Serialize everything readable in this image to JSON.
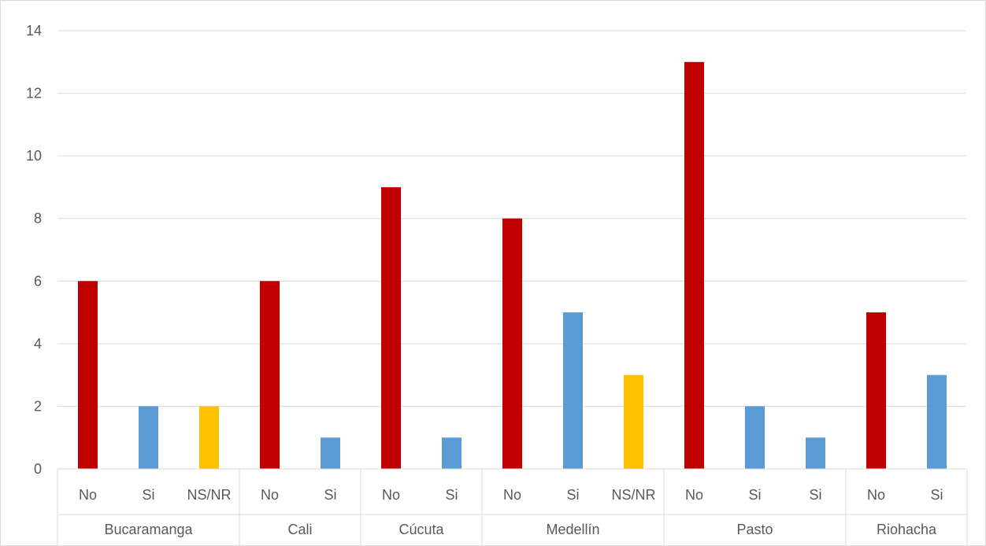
{
  "chart_data": {
    "type": "bar",
    "title": "",
    "xlabel": "",
    "ylabel": "",
    "ylim": [
      0,
      14
    ],
    "yticks": [
      0,
      2,
      4,
      6,
      8,
      10,
      12,
      14
    ],
    "grid": true,
    "legend": "none",
    "colors": {
      "No": "#c00000",
      "Si": "#5b9bd5",
      "NS/NR": "#ffc000"
    },
    "groups": [
      {
        "name": "Bucaramanga",
        "bars": [
          {
            "label": "No",
            "value": 6
          },
          {
            "label": "Si",
            "value": 2
          },
          {
            "label": "NS/NR",
            "value": 2
          }
        ]
      },
      {
        "name": "Cali",
        "bars": [
          {
            "label": "No",
            "value": 6
          },
          {
            "label": "Si",
            "value": 1
          }
        ]
      },
      {
        "name": "Cúcuta",
        "bars": [
          {
            "label": "No",
            "value": 9
          },
          {
            "label": "Si",
            "value": 1
          }
        ]
      },
      {
        "name": "Medellín",
        "bars": [
          {
            "label": "No",
            "value": 8
          },
          {
            "label": "Si",
            "value": 5
          },
          {
            "label": "NS/NR",
            "value": 3
          }
        ]
      },
      {
        "name": "Pasto",
        "bars": [
          {
            "label": "No",
            "value": 13
          },
          {
            "label": "Si",
            "value": 2
          },
          {
            "label": "Si",
            "value": 1
          }
        ]
      },
      {
        "name": "Riohacha",
        "bars": [
          {
            "label": "No",
            "value": 5
          },
          {
            "label": "Si",
            "value": 3
          }
        ]
      }
    ]
  }
}
